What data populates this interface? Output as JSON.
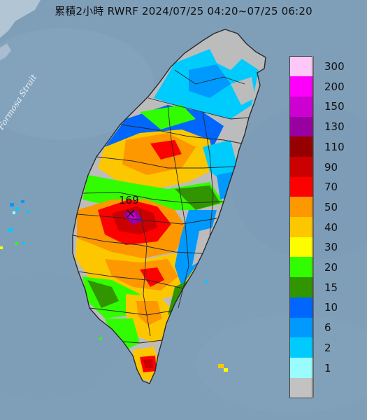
{
  "title": "累積2小時 RWRF 2024/07/25 04:20~07/25 06:20",
  "strait_label": "Formosa Strait",
  "max_value_label": "169",
  "legend": [
    {
      "label": "300",
      "color": "#fdc8f8"
    },
    {
      "label": "200",
      "color": "#fd00fb"
    },
    {
      "label": "150",
      "color": "#cc00d0"
    },
    {
      "label": "130",
      "color": "#98009f"
    },
    {
      "label": "110",
      "color": "#960000"
    },
    {
      "label": "90",
      "color": "#cb0000"
    },
    {
      "label": "70",
      "color": "#fd0000"
    },
    {
      "label": "50",
      "color": "#fd9800"
    },
    {
      "label": "40",
      "color": "#fdc700"
    },
    {
      "label": "30",
      "color": "#fdfd00"
    },
    {
      "label": "20",
      "color": "#31fd00"
    },
    {
      "label": "15",
      "color": "#319500"
    },
    {
      "label": "10",
      "color": "#0066fd"
    },
    {
      "label": "6",
      "color": "#0099fd"
    },
    {
      "label": "2",
      "color": "#00cbfd"
    },
    {
      "label": "1",
      "color": "#9afdfd"
    },
    {
      "label": "",
      "color": "#c2c2c2"
    }
  ],
  "colors": {
    "sea": "#7f9fb9",
    "no_rain_land": "#bcbcbc",
    "county_border": "#2a2a2a"
  }
}
